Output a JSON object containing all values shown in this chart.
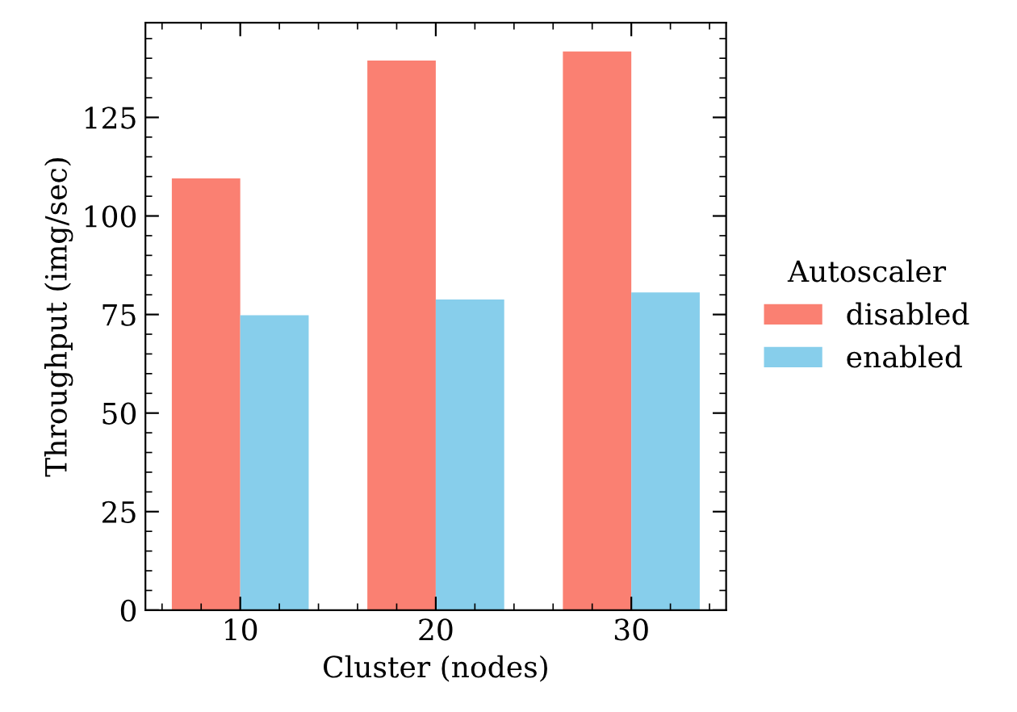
{
  "chart_data": {
    "type": "bar",
    "xlabel": "Cluster (nodes)",
    "ylabel": "Throughput (img/sec)",
    "legend_title": "Autoscaler",
    "categories": [
      "10",
      "20",
      "30"
    ],
    "series": [
      {
        "name": "disabled",
        "color": "#fa8072",
        "values": [
          109.5,
          139.4,
          141.7
        ]
      },
      {
        "name": "enabled",
        "color": "#87ceeb",
        "values": [
          74.8,
          78.8,
          80.6
        ]
      }
    ],
    "ylim": [
      0,
      149
    ],
    "yticks": [
      0,
      25,
      50,
      75,
      100,
      125
    ],
    "grid": false,
    "legend": "right"
  }
}
